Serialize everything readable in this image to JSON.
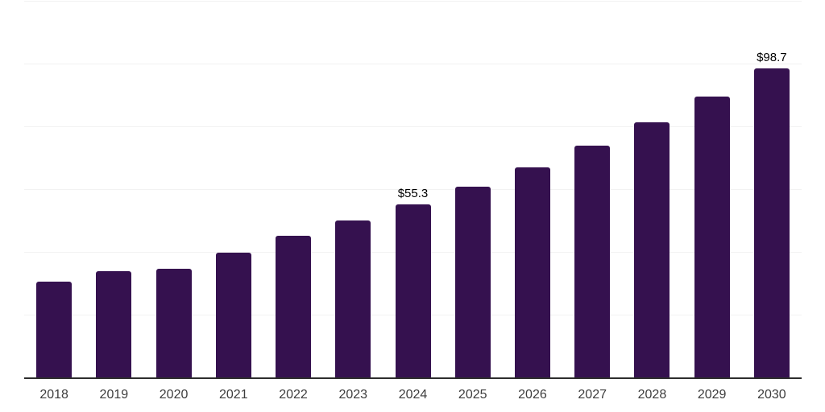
{
  "chart_data": {
    "type": "bar",
    "title": "",
    "xlabel": "",
    "ylabel": "",
    "categories": [
      "2018",
      "2019",
      "2020",
      "2021",
      "2022",
      "2023",
      "2024",
      "2025",
      "2026",
      "2027",
      "2028",
      "2029",
      "2030"
    ],
    "values": [
      30.8,
      34.1,
      35.0,
      40.1,
      45.5,
      50.2,
      55.3,
      61.0,
      67.2,
      74.0,
      81.5,
      89.7,
      98.7
    ],
    "data_labels": {
      "2024": "$55.3",
      "2030": "$98.7"
    },
    "ylim": [
      0,
      120
    ],
    "gridline_step": 20,
    "grid": "horizontal-only",
    "y_tick_labels_visible": false,
    "legend": "none",
    "colors": {
      "bar": "#35114F",
      "axis_line": "#2D2D2D",
      "gridline": "#F2F2F2",
      "tick_label": "#3D3D3D",
      "data_label": "#000000",
      "background": "#FFFFFF"
    }
  }
}
